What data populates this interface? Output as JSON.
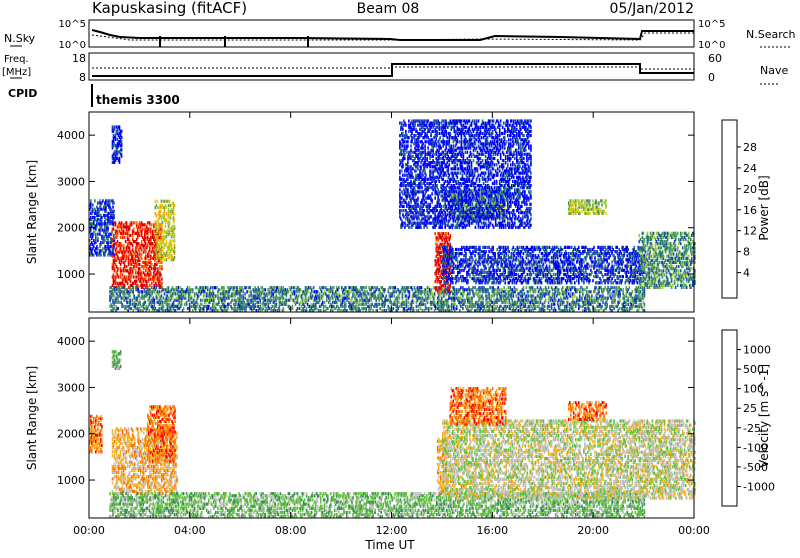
{
  "header": {
    "station": "Kapuskasing (fitACF)",
    "beam": "Beam 08",
    "date": "05/Jan/2012"
  },
  "top_panels": {
    "nsky_label": "N.Sky",
    "nsky_ticks": [
      "10^5",
      "10^0"
    ],
    "nsearch_label": "N.Search",
    "freq_label_line1": "Freq.",
    "freq_label_line2": "[MHz]",
    "freq_ticks": [
      "18",
      "8"
    ],
    "nave_ticks": [
      "60",
      "0"
    ],
    "nave_label": "Nave",
    "cpid_label": "CPID",
    "cpid_name": "themis 3300"
  },
  "chart_data": [
    {
      "type": "heatmap",
      "name": "power",
      "ylabel": "Slant Range [km]",
      "xlabel": "",
      "xlim": [
        0,
        24
      ],
      "ylim": [
        180,
        4500
      ],
      "yticks": [
        1000,
        2000,
        3000,
        4000
      ],
      "colorbar": {
        "label": "Power [dB]",
        "ticks": [
          "28",
          "24",
          "20",
          "16",
          "12",
          "8",
          "4"
        ],
        "colors": [
          "#0000ff",
          "#1a4fa8",
          "#2f7d6e",
          "#56a35c",
          "#9ccc3a",
          "#f0d000",
          "#f5a400",
          "#ff6600",
          "#ff2a00",
          "#dd0000"
        ]
      },
      "regions": [
        {
          "t": [
            0.9,
            2.9
          ],
          "r": [
            700,
            2100
          ],
          "level": 0.9
        },
        {
          "t": [
            2.6,
            3.4
          ],
          "r": [
            1300,
            2600
          ],
          "level": 0.5
        },
        {
          "t": [
            0.0,
            1.0
          ],
          "r": [
            1400,
            2600
          ],
          "level": 0.1
        },
        {
          "t": [
            0.9,
            1.3
          ],
          "r": [
            3400,
            4200
          ],
          "level": 0.05
        },
        {
          "t": [
            0.8,
            22.0
          ],
          "r": [
            200,
            700
          ],
          "level": 0.25
        },
        {
          "t": [
            13.7,
            14.3
          ],
          "r": [
            600,
            1900
          ],
          "level": 0.95
        },
        {
          "t": [
            14.0,
            22.0
          ],
          "r": [
            800,
            1600
          ],
          "level": 0.1
        },
        {
          "t": [
            14.3,
            16.5
          ],
          "r": [
            2200,
            2800
          ],
          "level": 0.35
        },
        {
          "t": [
            19.0,
            20.5
          ],
          "r": [
            2300,
            2600
          ],
          "level": 0.45
        },
        {
          "t": [
            21.8,
            24.0
          ],
          "r": [
            700,
            1900
          ],
          "level": 0.3
        },
        {
          "t": [
            12.3,
            17.5
          ],
          "r": [
            2000,
            4300
          ],
          "level": 0.05
        }
      ]
    },
    {
      "type": "heatmap",
      "name": "velocity",
      "ylabel": "Slant Range [km]",
      "xlabel": "Time UT",
      "xlim": [
        0,
        24
      ],
      "xticks": [
        "00:00",
        "04:00",
        "08:00",
        "12:00",
        "16:00",
        "20:00",
        "00:00"
      ],
      "ylim": [
        180,
        4500
      ],
      "yticks": [
        1000,
        2000,
        3000,
        4000
      ],
      "colorbar": {
        "label": "Velocity [m s^-1]",
        "ticks": [
          "1000",
          "500",
          "100",
          "25",
          "-25",
          "-100",
          "-500",
          "-1000"
        ],
        "colors": [
          "#1a2fb0",
          "#2f6fb5",
          "#3a8c5a",
          "#5fc23a",
          "#c0c0c0",
          "#f5b020",
          "#ff7000",
          "#ff0000"
        ]
      },
      "regions": [
        {
          "t": [
            0.9,
            3.5
          ],
          "r": [
            700,
            2100
          ],
          "class": 5
        },
        {
          "t": [
            2.3,
            3.4
          ],
          "r": [
            1400,
            2600
          ],
          "class": 6
        },
        {
          "t": [
            0.0,
            0.5
          ],
          "r": [
            1600,
            2400
          ],
          "class": 6
        },
        {
          "t": [
            0.9,
            1.3
          ],
          "r": [
            3400,
            3800
          ],
          "class": 3
        },
        {
          "t": [
            0.8,
            22.0
          ],
          "r": [
            200,
            700
          ],
          "class": 3
        },
        {
          "t": [
            13.8,
            14.2
          ],
          "r": [
            700,
            1900
          ],
          "class": 5
        },
        {
          "t": [
            14.0,
            24.0
          ],
          "r": [
            600,
            2300
          ],
          "class": 4
        },
        {
          "t": [
            14.3,
            16.5
          ],
          "r": [
            2200,
            3000
          ],
          "class": 6
        },
        {
          "t": [
            19.0,
            20.5
          ],
          "r": [
            2300,
            2700
          ],
          "class": 6
        }
      ]
    }
  ]
}
